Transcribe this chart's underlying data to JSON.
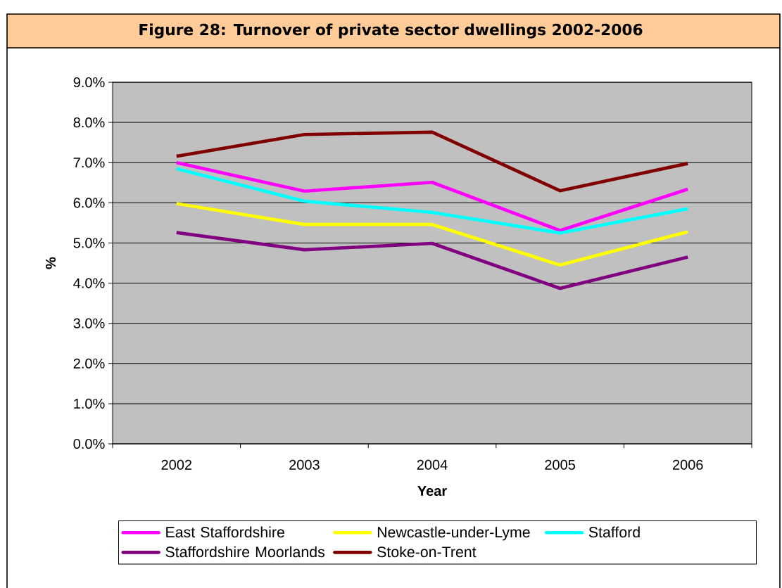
{
  "chart_data": {
    "type": "line",
    "title": "Figure 28: Turnover of private sector dwellings 2002-2006",
    "xlabel": "Year",
    "ylabel": "%",
    "categories": [
      "2002",
      "2003",
      "2004",
      "2005",
      "2006"
    ],
    "ylim": [
      0,
      9
    ],
    "yticks": [
      {
        "value": 0,
        "label": "0.0%"
      },
      {
        "value": 1,
        "label": "1.0%"
      },
      {
        "value": 2,
        "label": "2.0%"
      },
      {
        "value": 3,
        "label": "3.0%"
      },
      {
        "value": 4,
        "label": "4.0%"
      },
      {
        "value": 5,
        "label": "5.0%"
      },
      {
        "value": 6,
        "label": "6.0%"
      },
      {
        "value": 7,
        "label": "7.0%"
      },
      {
        "value": 8,
        "label": "8.0%"
      },
      {
        "value": 9,
        "label": "9.0%"
      }
    ],
    "grid": "y",
    "legend": "bottom",
    "marker": "none",
    "line_style": "solid",
    "series": [
      {
        "name": "East Staffordshire",
        "color": "#ff00ff",
        "values": [
          7.0,
          6.29,
          6.51,
          5.31,
          6.34
        ]
      },
      {
        "name": "Newcastle-under-Lyme",
        "color": "#ffff00",
        "values": [
          5.98,
          5.46,
          5.46,
          4.45,
          5.28
        ]
      },
      {
        "name": "Stafford",
        "color": "#00ffff",
        "values": [
          6.85,
          6.04,
          5.76,
          5.25,
          5.85
        ]
      },
      {
        "name": "Staffordshire Moorlands",
        "color": "#800080",
        "values": [
          5.26,
          4.83,
          4.99,
          3.87,
          4.65
        ]
      },
      {
        "name": "Stoke-on-Trent",
        "color": "#800000",
        "values": [
          7.16,
          7.7,
          7.76,
          6.3,
          6.98
        ]
      }
    ]
  }
}
